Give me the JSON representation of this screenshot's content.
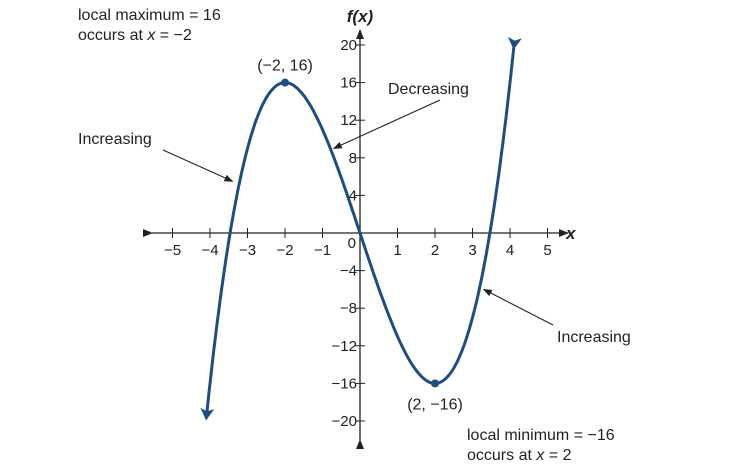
{
  "chart_data": {
    "type": "line",
    "xlabel": "x",
    "ylabel": "f(x)",
    "xlim": [
      -5.5,
      5.5
    ],
    "ylim": [
      -22,
      22
    ],
    "x_ticks": [
      -5,
      -4,
      -3,
      -2,
      -1,
      1,
      2,
      3,
      4,
      5
    ],
    "x_tick_labels": [
      "−5",
      "−4",
      "−3",
      "−2",
      "−1",
      "1",
      "2",
      "3",
      "4",
      "5"
    ],
    "y_ticks": [
      20,
      16,
      12,
      8,
      4,
      -4,
      -8,
      -12,
      -16,
      -20
    ],
    "y_tick_labels": [
      "20",
      "16",
      "12",
      "8",
      "4",
      "−4",
      "−8",
      "−12",
      "−16",
      "−20"
    ],
    "origin_label": "0",
    "grid": false,
    "curve": {
      "cubic_coefficients": [
        1,
        0,
        -12,
        0
      ],
      "x_range": [
        -4.1,
        4.1
      ],
      "color": "#1f4e7e"
    },
    "points": [
      {
        "x": -2,
        "y": 16,
        "label": "(−2, 16)"
      },
      {
        "x": 2,
        "y": -16,
        "label": "(2, −16)"
      }
    ],
    "annotations": [
      {
        "text": "Increasing",
        "arrow_to": [
          -3.4,
          5.5
        ]
      },
      {
        "text": "Decreasing",
        "arrow_to": [
          -0.7,
          9
        ]
      },
      {
        "text": "Increasing",
        "arrow_to": [
          3.3,
          -6
        ]
      }
    ],
    "notes": {
      "max_line1": "local maximum = 16",
      "max_line2_prefix": "occurs at ",
      "max_line2_var": "x",
      "max_line2_suffix": " = −2",
      "min_line1": "local minimum = −16",
      "min_line2_prefix": "occurs at ",
      "min_line2_var": "x",
      "min_line2_suffix": " = 2"
    }
  }
}
